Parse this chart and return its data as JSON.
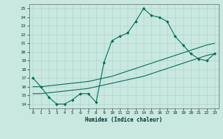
{
  "xlabel": "Humidex (Indice chaleur)",
  "ylabel": "",
  "xlim": [
    -0.5,
    23.5
  ],
  "ylim": [
    13.5,
    25.5
  ],
  "xticks": [
    0,
    1,
    2,
    3,
    4,
    5,
    6,
    7,
    8,
    9,
    10,
    11,
    12,
    13,
    14,
    15,
    16,
    17,
    18,
    19,
    20,
    21,
    22,
    23
  ],
  "yticks": [
    14,
    15,
    16,
    17,
    18,
    19,
    20,
    21,
    22,
    23,
    24,
    25
  ],
  "bg_color": "#c8e8e0",
  "grid_color": "#b0d4cc",
  "line_color": "#006858",
  "line1_x": [
    0,
    1,
    2,
    3,
    4,
    5,
    6,
    7,
    8,
    9,
    10,
    11,
    12,
    13,
    14,
    15,
    16,
    17,
    18,
    19,
    20,
    21,
    22,
    23
  ],
  "line1_y": [
    17.0,
    16.0,
    14.8,
    14.0,
    14.0,
    14.5,
    15.2,
    15.2,
    14.2,
    18.8,
    21.3,
    21.8,
    22.2,
    23.5,
    25.0,
    24.2,
    24.0,
    23.5,
    21.8,
    20.8,
    19.8,
    19.2,
    19.0,
    19.8
  ],
  "line2_x": [
    0,
    1,
    2,
    3,
    4,
    5,
    6,
    7,
    8,
    9,
    10,
    11,
    12,
    13,
    14,
    15,
    16,
    17,
    18,
    19,
    20,
    21,
    22,
    23
  ],
  "line2_y": [
    16.0,
    16.0,
    16.1,
    16.2,
    16.3,
    16.4,
    16.5,
    16.6,
    16.8,
    17.0,
    17.2,
    17.5,
    17.8,
    18.1,
    18.4,
    18.7,
    19.0,
    19.3,
    19.6,
    19.9,
    20.2,
    20.5,
    20.8,
    21.0
  ],
  "line3_x": [
    0,
    1,
    2,
    3,
    4,
    5,
    6,
    7,
    8,
    9,
    10,
    11,
    12,
    13,
    14,
    15,
    16,
    17,
    18,
    19,
    20,
    21,
    22,
    23
  ],
  "line3_y": [
    15.2,
    15.2,
    15.3,
    15.4,
    15.5,
    15.6,
    15.7,
    15.8,
    16.0,
    16.2,
    16.4,
    16.6,
    16.8,
    17.0,
    17.2,
    17.5,
    17.8,
    18.1,
    18.4,
    18.7,
    19.0,
    19.3,
    19.6,
    19.8
  ],
  "figsize": [
    3.2,
    2.0
  ],
  "dpi": 100
}
